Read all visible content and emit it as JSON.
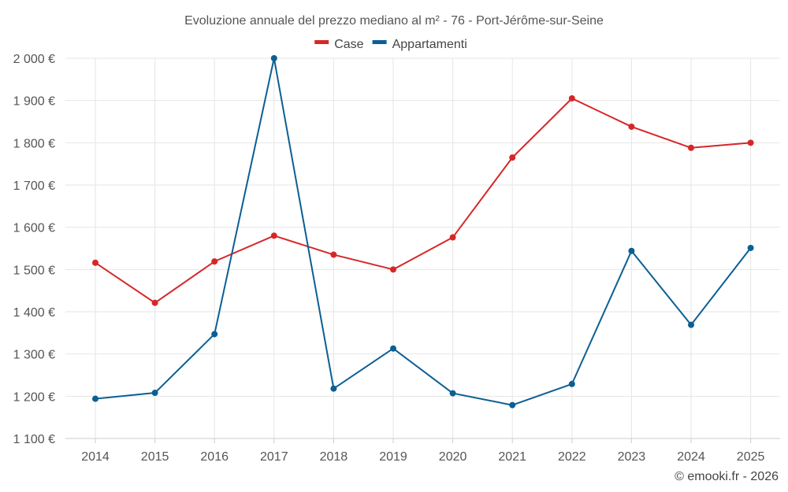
{
  "chart_data": {
    "type": "line",
    "title": "Evoluzione annuale del prezzo mediano al m² - 76 - Port-Jérôme-sur-Seine",
    "xlabel": "",
    "ylabel": "",
    "categories": [
      "2014",
      "2015",
      "2016",
      "2017",
      "2018",
      "2019",
      "2020",
      "2021",
      "2022",
      "2023",
      "2024",
      "2025"
    ],
    "series": [
      {
        "name": "Case",
        "color": "#d62728",
        "values": [
          1516,
          1421,
          1519,
          1580,
          1535,
          1500,
          1576,
          1765,
          1905,
          1838,
          1788,
          1800
        ]
      },
      {
        "name": "Appartamenti",
        "color": "#0b5f93",
        "values": [
          1194,
          1208,
          1347,
          2000,
          1218,
          1313,
          1207,
          1179,
          1229,
          1544,
          1369,
          1551
        ]
      }
    ],
    "ylim": [
      1100,
      2000
    ],
    "yticks": [
      1100,
      1200,
      1300,
      1400,
      1500,
      1600,
      1700,
      1800,
      1900,
      2000
    ],
    "ytick_labels": [
      "1 100 €",
      "1 200 €",
      "1 300 €",
      "1 400 €",
      "1 500 €",
      "1 600 €",
      "1 700 €",
      "1 800 €",
      "1 900 €",
      "2 000 €"
    ],
    "grid": true,
    "legend_position": "top-center"
  },
  "credit": "© emooki.fr - 2026"
}
